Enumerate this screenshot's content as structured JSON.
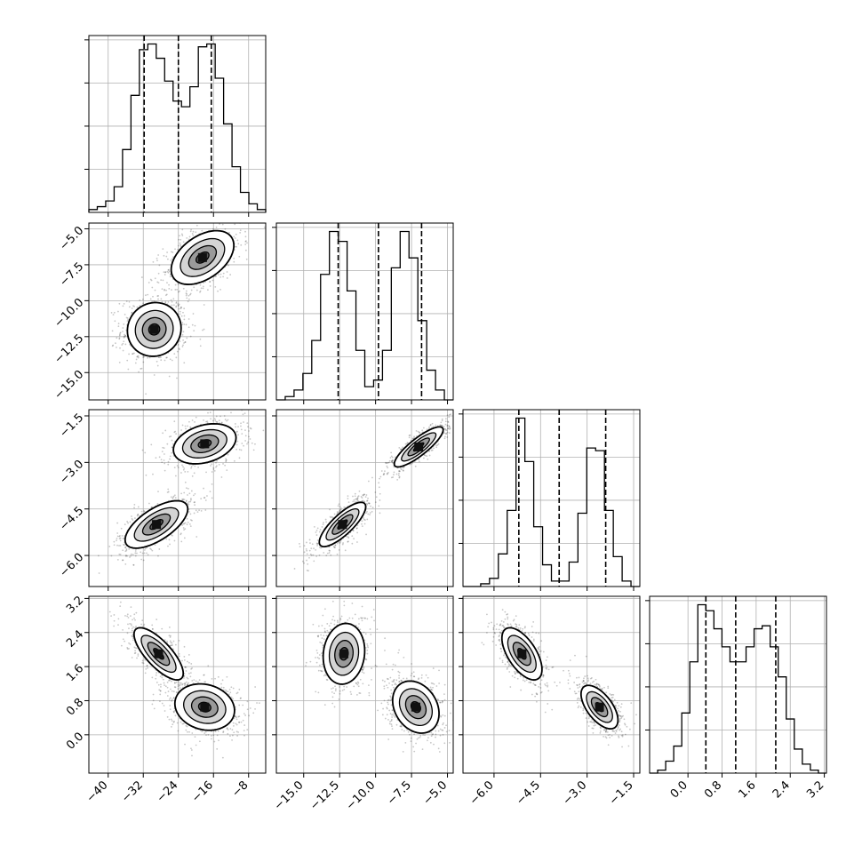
{
  "chart_data": {
    "type": "corner",
    "grid": true,
    "parameters": [
      {
        "range": [
          -44.4,
          -4.1
        ],
        "ticks": [
          -40,
          -32,
          -24,
          -16,
          -8
        ],
        "tick_labels": [
          "−40",
          "−32",
          "−24",
          "−16",
          "−8"
        ],
        "quantiles": [
          -31.8,
          -24.0,
          -16.5
        ],
        "histogram": [
          1,
          2,
          4,
          9,
          22,
          41,
          57,
          59,
          54,
          46,
          39,
          37,
          44,
          58,
          59,
          47,
          31,
          16,
          7,
          3,
          1
        ]
      },
      {
        "range": [
          -16.9,
          -4.6
        ],
        "ticks": [
          -15.0,
          -12.5,
          -10.0,
          -7.5,
          -5.0
        ],
        "tick_labels": [
          "−15.0",
          "−12.5",
          "−10.0",
          "−7.5",
          "−5.0"
        ],
        "quantiles": [
          -12.6,
          -9.8,
          -6.8
        ],
        "histogram": [
          0,
          1,
          3,
          8,
          18,
          38,
          51,
          48,
          33,
          15,
          4,
          6,
          15,
          40,
          51,
          43,
          24,
          9,
          3,
          0
        ]
      },
      {
        "range": [
          -7.0,
          -1.3
        ],
        "ticks": [
          -6.0,
          -4.5,
          -3.0,
          -1.5
        ],
        "tick_labels": [
          "−6.0",
          "−4.5",
          "−3.0",
          "−1.5"
        ],
        "quantiles": [
          -5.2,
          -3.9,
          -2.4
        ],
        "histogram": [
          0,
          0,
          1,
          3,
          12,
          28,
          62,
          46,
          22,
          8,
          2,
          2,
          9,
          27,
          51,
          50,
          28,
          11,
          2,
          0
        ]
      },
      {
        "range": [
          -0.9,
          3.25
        ],
        "ticks": [
          0.0,
          0.8,
          1.6,
          2.4,
          3.2
        ],
        "tick_labels": [
          "0.0",
          "0.8",
          "1.6",
          "2.4",
          "3.2"
        ],
        "quantiles": [
          0.42,
          1.12,
          2.06
        ],
        "histogram": [
          0,
          1,
          4,
          9,
          20,
          37,
          56,
          54,
          48,
          42,
          37,
          37,
          42,
          48,
          49,
          42,
          32,
          18,
          8,
          3,
          1,
          0
        ]
      }
    ],
    "pairs": [
      {
        "row": 1,
        "col": 0,
        "modes": [
          {
            "center": [
              -29.5,
              -12.0
            ],
            "sx": 3.6,
            "sy": 1.1,
            "rho": 0.05,
            "weight": 0.5
          },
          {
            "center": [
              -18.5,
              -7.0
            ],
            "sx": 4.2,
            "sy": 1.1,
            "rho": 0.45,
            "weight": 0.5
          }
        ]
      },
      {
        "row": 2,
        "col": 0,
        "modes": [
          {
            "center": [
              -29.0,
              -5.0
            ],
            "sx": 4.2,
            "sy": 0.45,
            "rho": 0.65,
            "weight": 0.5
          },
          {
            "center": [
              -18.0,
              -2.4
            ],
            "sx": 4.2,
            "sy": 0.38,
            "rho": 0.3,
            "weight": 0.5
          }
        ]
      },
      {
        "row": 2,
        "col": 1,
        "modes": [
          {
            "center": [
              -12.3,
              -5.0
            ],
            "sx": 0.95,
            "sy": 0.42,
            "rho": 0.8,
            "weight": 0.5
          },
          {
            "center": [
              -7.0,
              -2.5
            ],
            "sx": 1.0,
            "sy": 0.38,
            "rho": 0.85,
            "weight": 0.5
          }
        ]
      },
      {
        "row": 3,
        "col": 0,
        "modes": [
          {
            "center": [
              -28.5,
              1.9
            ],
            "sx": 3.3,
            "sy": 0.36,
            "rho": -0.75,
            "weight": 0.5
          },
          {
            "center": [
              -18.0,
              0.65
            ],
            "sx": 4.0,
            "sy": 0.32,
            "rho": -0.15,
            "weight": 0.5
          }
        ]
      },
      {
        "row": 3,
        "col": 1,
        "modes": [
          {
            "center": [
              -12.2,
              1.9
            ],
            "sx": 0.85,
            "sy": 0.42,
            "rho": 0.1,
            "weight": 0.5
          },
          {
            "center": [
              -7.2,
              0.65
            ],
            "sx": 0.95,
            "sy": 0.36,
            "rho": -0.25,
            "weight": 0.5
          }
        ]
      },
      {
        "row": 3,
        "col": 2,
        "modes": [
          {
            "center": [
              -5.1,
              1.9
            ],
            "sx": 0.38,
            "sy": 0.36,
            "rho": -0.6,
            "weight": 0.5
          },
          {
            "center": [
              -2.6,
              0.65
            ],
            "sx": 0.35,
            "sy": 0.3,
            "rho": -0.6,
            "weight": 0.5
          }
        ]
      }
    ]
  }
}
